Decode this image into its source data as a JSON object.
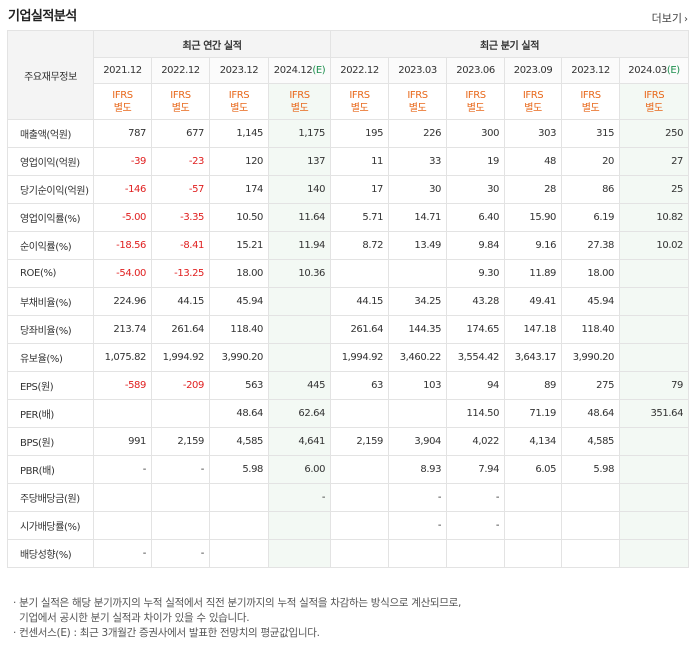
{
  "section": {
    "title": "기업실적분석",
    "more_label": "더보기"
  },
  "table": {
    "label_header": "주요재무정보",
    "annual_group": "최근 연간 실적",
    "quarter_group": "최근 분기 실적",
    "periods": [
      {
        "p": "2021.12",
        "est": ""
      },
      {
        "p": "2022.12",
        "est": ""
      },
      {
        "p": "2023.12",
        "est": ""
      },
      {
        "p": "2024.12",
        "est": "(E)"
      },
      {
        "p": "2022.12",
        "est": ""
      },
      {
        "p": "2023.03",
        "est": ""
      },
      {
        "p": "2023.06",
        "est": ""
      },
      {
        "p": "2023.09",
        "est": ""
      },
      {
        "p": "2023.12",
        "est": ""
      },
      {
        "p": "2024.03",
        "est": "(E)"
      }
    ],
    "ifrs_line1": "IFRS",
    "ifrs_line2": "별도",
    "rows": [
      {
        "label": "매출액(억원)",
        "values": [
          "787",
          "677",
          "1,145",
          "1,175",
          "195",
          "226",
          "300",
          "303",
          "315",
          "250"
        ]
      },
      {
        "label": "영업이익(억원)",
        "values": [
          "-39",
          "-23",
          "120",
          "137",
          "11",
          "33",
          "19",
          "48",
          "20",
          "27"
        ]
      },
      {
        "label": "당기순이익(억원)",
        "values": [
          "-146",
          "-57",
          "174",
          "140",
          "17",
          "30",
          "30",
          "28",
          "86",
          "25"
        ]
      },
      {
        "label": "영업이익률(%)",
        "values": [
          "-5.00",
          "-3.35",
          "10.50",
          "11.64",
          "5.71",
          "14.71",
          "6.40",
          "15.90",
          "6.19",
          "10.82"
        ]
      },
      {
        "label": "순이익률(%)",
        "values": [
          "-18.56",
          "-8.41",
          "15.21",
          "11.94",
          "8.72",
          "13.49",
          "9.84",
          "9.16",
          "27.38",
          "10.02"
        ]
      },
      {
        "label": "ROE(%)",
        "values": [
          "-54.00",
          "-13.25",
          "18.00",
          "10.36",
          "",
          "",
          "9.30",
          "11.89",
          "18.00",
          ""
        ]
      },
      {
        "label": "부채비율(%)",
        "values": [
          "224.96",
          "44.15",
          "45.94",
          "",
          "44.15",
          "34.25",
          "43.28",
          "49.41",
          "45.94",
          ""
        ]
      },
      {
        "label": "당좌비율(%)",
        "values": [
          "213.74",
          "261.64",
          "118.40",
          "",
          "261.64",
          "144.35",
          "174.65",
          "147.18",
          "118.40",
          ""
        ]
      },
      {
        "label": "유보율(%)",
        "values": [
          "1,075.82",
          "1,994.92",
          "3,990.20",
          "",
          "1,994.92",
          "3,460.22",
          "3,554.42",
          "3,643.17",
          "3,990.20",
          ""
        ]
      },
      {
        "label": "EPS(원)",
        "values": [
          "-589",
          "-209",
          "563",
          "445",
          "63",
          "103",
          "94",
          "89",
          "275",
          "79"
        ]
      },
      {
        "label": "PER(배)",
        "values": [
          "",
          "",
          "48.64",
          "62.64",
          "",
          "",
          "114.50",
          "71.19",
          "48.64",
          "351.64"
        ]
      },
      {
        "label": "BPS(원)",
        "values": [
          "991",
          "2,159",
          "4,585",
          "4,641",
          "2,159",
          "3,904",
          "4,022",
          "4,134",
          "4,585",
          ""
        ]
      },
      {
        "label": "PBR(배)",
        "values": [
          "-",
          "-",
          "5.98",
          "6.00",
          "",
          "8.93",
          "7.94",
          "6.05",
          "5.98",
          ""
        ]
      },
      {
        "label": "주당배당금(원)",
        "values": [
          "",
          "",
          "",
          "-",
          "",
          "-",
          "-",
          "",
          "",
          ""
        ]
      },
      {
        "label": "시가배당률(%)",
        "values": [
          "",
          "",
          "",
          "",
          "",
          "-",
          "-",
          "",
          "",
          ""
        ]
      },
      {
        "label": "배당성향(%)",
        "values": [
          "-",
          "-",
          "",
          "",
          "",
          "",
          "",
          "",
          "",
          ""
        ]
      }
    ]
  },
  "notes": [
    "분기 실적은 해당 분기까지의 누적 실적에서 직전 분기까지의 누적 실적을 차감하는 방식으로 계산되므로,",
    "기업에서 공시한 분기 실적과 차이가 있을 수 있습니다.",
    "컨센서스(E) : 최근 3개월간 증권사에서 발표한 전망치의 평균값입니다."
  ],
  "colors": {
    "negative": "#e02020",
    "ifrs": "#e8681b",
    "estimate": "#1d8f4e",
    "highlight": "#f3f9f4"
  }
}
